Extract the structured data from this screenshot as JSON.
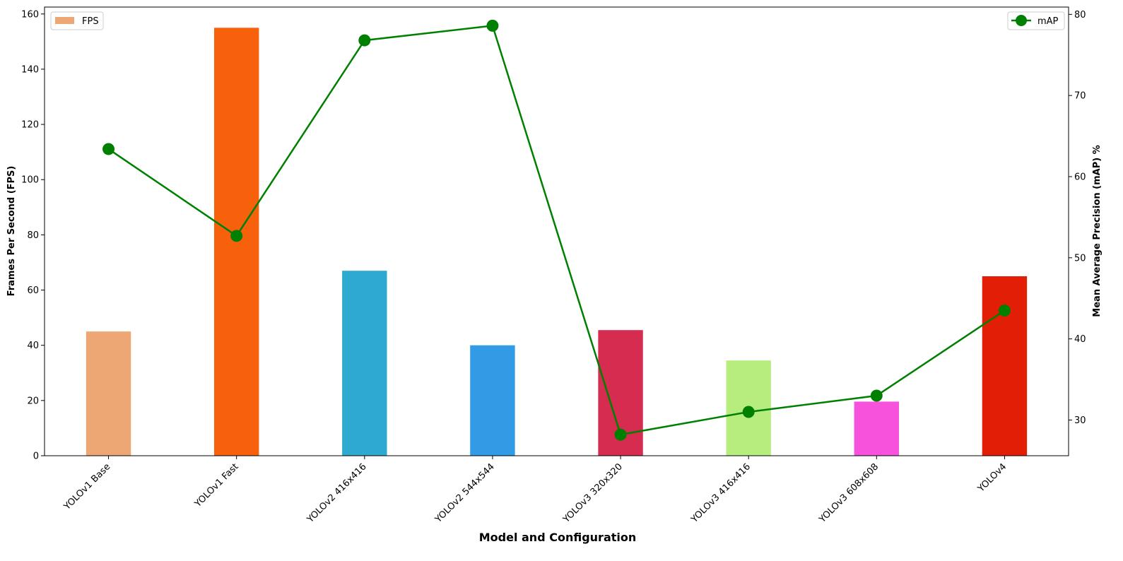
{
  "chart_data": {
    "type": "bar",
    "xlabel": "Model and Configuration",
    "ylabel": "Frames Per Second (FPS)",
    "y2label": "Mean Average Precision (mAP) %",
    "categories": [
      "YOLOv1 Base",
      "YOLOv1 Fast",
      "YOLOv2 416x416",
      "YOLOv2 544x544",
      "YOLOv3 320x320",
      "YOLOv3 416x416",
      "YOLOv3 608x608",
      "YOLOv4"
    ],
    "series": [
      {
        "name": "FPS",
        "type": "bar",
        "axis": "left",
        "values": [
          45,
          155,
          67,
          40,
          45.5,
          34.5,
          19.6,
          65
        ],
        "colors": [
          "#eda775",
          "#f7610b",
          "#2ea9cf",
          "#329be6",
          "#d62c4f",
          "#b7ed7f",
          "#f752dc",
          "#e31e07"
        ]
      },
      {
        "name": "mAP",
        "type": "line",
        "axis": "right",
        "color": "#008000",
        "values": [
          63.4,
          52.7,
          76.8,
          78.6,
          28.2,
          31.0,
          33.0,
          43.5
        ]
      }
    ],
    "ylim": [
      0,
      162.5
    ],
    "yticks": [
      0,
      20,
      40,
      60,
      80,
      100,
      120,
      140,
      160
    ],
    "y2lim": [
      25.6,
      80.9
    ],
    "y2ticks": [
      30,
      40,
      50,
      60,
      70,
      80
    ],
    "legend_left": {
      "label": "FPS",
      "color": "#eda775",
      "placement": "top-left"
    },
    "legend_right": {
      "label": "mAP",
      "color": "#008000",
      "placement": "top-right"
    },
    "grid": false
  }
}
